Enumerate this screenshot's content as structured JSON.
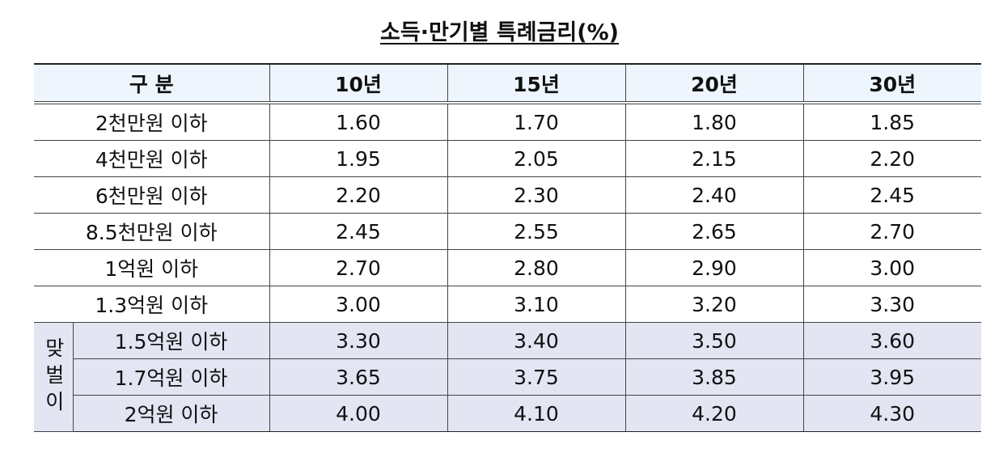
{
  "title": "소득·만기별 특례금리(%)",
  "table": {
    "header": [
      "구 분",
      "10년",
      "15년",
      "20년",
      "30년"
    ],
    "rows": [
      [
        "2천만원 이하",
        "1.60",
        "1.70",
        "1.80",
        "1.85"
      ],
      [
        "4천만원 이하",
        "1.95",
        "2.05",
        "2.15",
        "2.20"
      ],
      [
        "6천만원 이하",
        "2.20",
        "2.30",
        "2.40",
        "2.45"
      ],
      [
        "8.5천만원 이하",
        "2.45",
        "2.55",
        "2.65",
        "2.70"
      ],
      [
        "1억원 이하",
        "2.70",
        "2.80",
        "2.90",
        "3.00"
      ],
      [
        "1.3억원 이하",
        "3.00",
        "3.10",
        "3.20",
        "3.30"
      ]
    ],
    "couple": {
      "label": "맞벌이",
      "rows": [
        [
          "1.5억원 이하",
          "3.30",
          "3.40",
          "3.50",
          "3.60"
        ],
        [
          "1.7억원 이하",
          "3.65",
          "3.75",
          "3.85",
          "3.95"
        ],
        [
          "2억원 이하",
          "4.00",
          "4.10",
          "4.20",
          "4.30"
        ]
      ]
    }
  }
}
